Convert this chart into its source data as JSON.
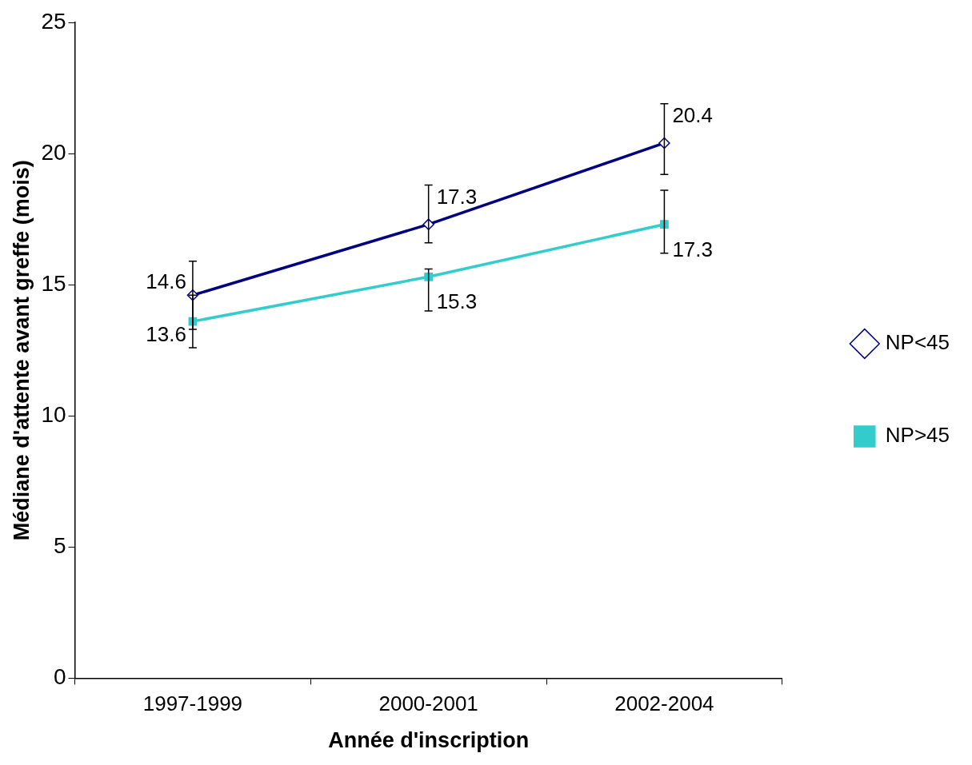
{
  "chart_data": {
    "type": "line",
    "xlabel": "Année d'inscription",
    "ylabel": "Médiane d'attente avant greffe (mois)",
    "categories": [
      "1997-1999",
      "2000-2001",
      "2002-2004"
    ],
    "ylim": [
      0,
      25
    ],
    "yticks": [
      0,
      5,
      10,
      15,
      20,
      25
    ],
    "grid": false,
    "legend": "right",
    "data_labels": true,
    "line_style": "solid",
    "series": [
      {
        "name": "NP<45",
        "color": "#000080",
        "marker": "diamond",
        "values": [
          14.6,
          17.3,
          20.4
        ],
        "errors": [
          [
            13.3,
            15.9
          ],
          [
            16.6,
            18.8
          ],
          [
            19.2,
            21.9
          ]
        ]
      },
      {
        "name": "NP>45",
        "color": "#33cccc",
        "marker": "square",
        "values": [
          13.6,
          15.3,
          17.3
        ],
        "errors": [
          [
            12.6,
            14.6
          ],
          [
            14.0,
            15.6
          ],
          [
            16.2,
            18.6
          ]
        ]
      }
    ]
  }
}
